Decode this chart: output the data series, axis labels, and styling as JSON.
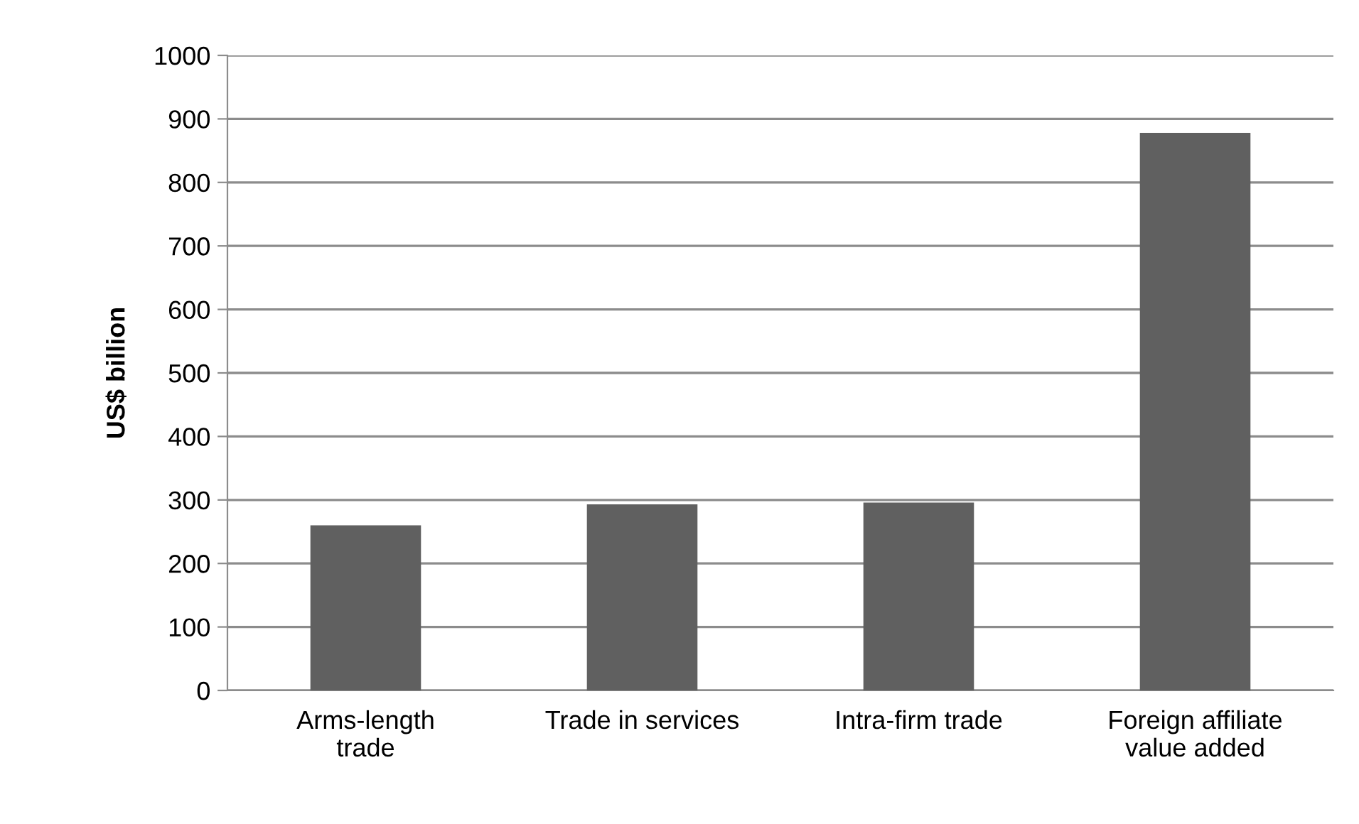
{
  "chart_data": {
    "type": "bar",
    "ylabel": "US$ billion",
    "categories": [
      "Arms-length\ntrade",
      "Trade in services",
      "Intra-firm trade",
      "Foreign affiliate\nvalue added"
    ],
    "values": [
      260,
      293,
      296,
      878
    ],
    "color": "#606060",
    "ylim": [
      0,
      1000
    ],
    "yticks": [
      0,
      100,
      200,
      300,
      400,
      500,
      600,
      700,
      800,
      900,
      1000
    ],
    "grid": "y"
  }
}
